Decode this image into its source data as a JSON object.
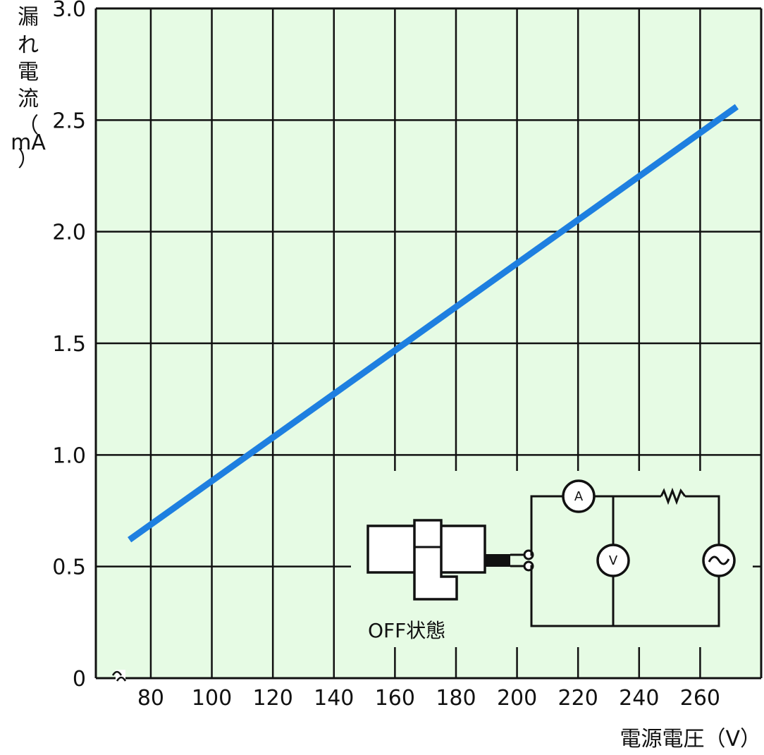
{
  "chart_data": {
    "type": "line",
    "title": "",
    "xlabel": "電源電圧（V）",
    "ylabel_chars": [
      "漏",
      "れ",
      "電",
      "流",
      "（",
      "mA",
      "）"
    ],
    "x_ticks": [
      "80",
      "100",
      "120",
      "140",
      "160",
      "180",
      "200",
      "220",
      "240",
      "260"
    ],
    "y_ticks": [
      "0",
      "0.5",
      "1.0",
      "1.5",
      "2.0",
      "2.5",
      "3.0"
    ],
    "x_break_symbol": "≈",
    "xlim": [
      62,
      280
    ],
    "ylim": [
      0,
      3.0
    ],
    "grid": true,
    "series": [
      {
        "x": [
          73,
          272
        ],
        "y": [
          0.62,
          2.56
        ],
        "color": "#1e7fe0"
      }
    ],
    "background_color": "#e6fbe4",
    "inset": {
      "state_label": "OFF状態",
      "ammeter_symbol": "A",
      "voltmeter_symbol": "V",
      "source_symbol": "~"
    }
  }
}
